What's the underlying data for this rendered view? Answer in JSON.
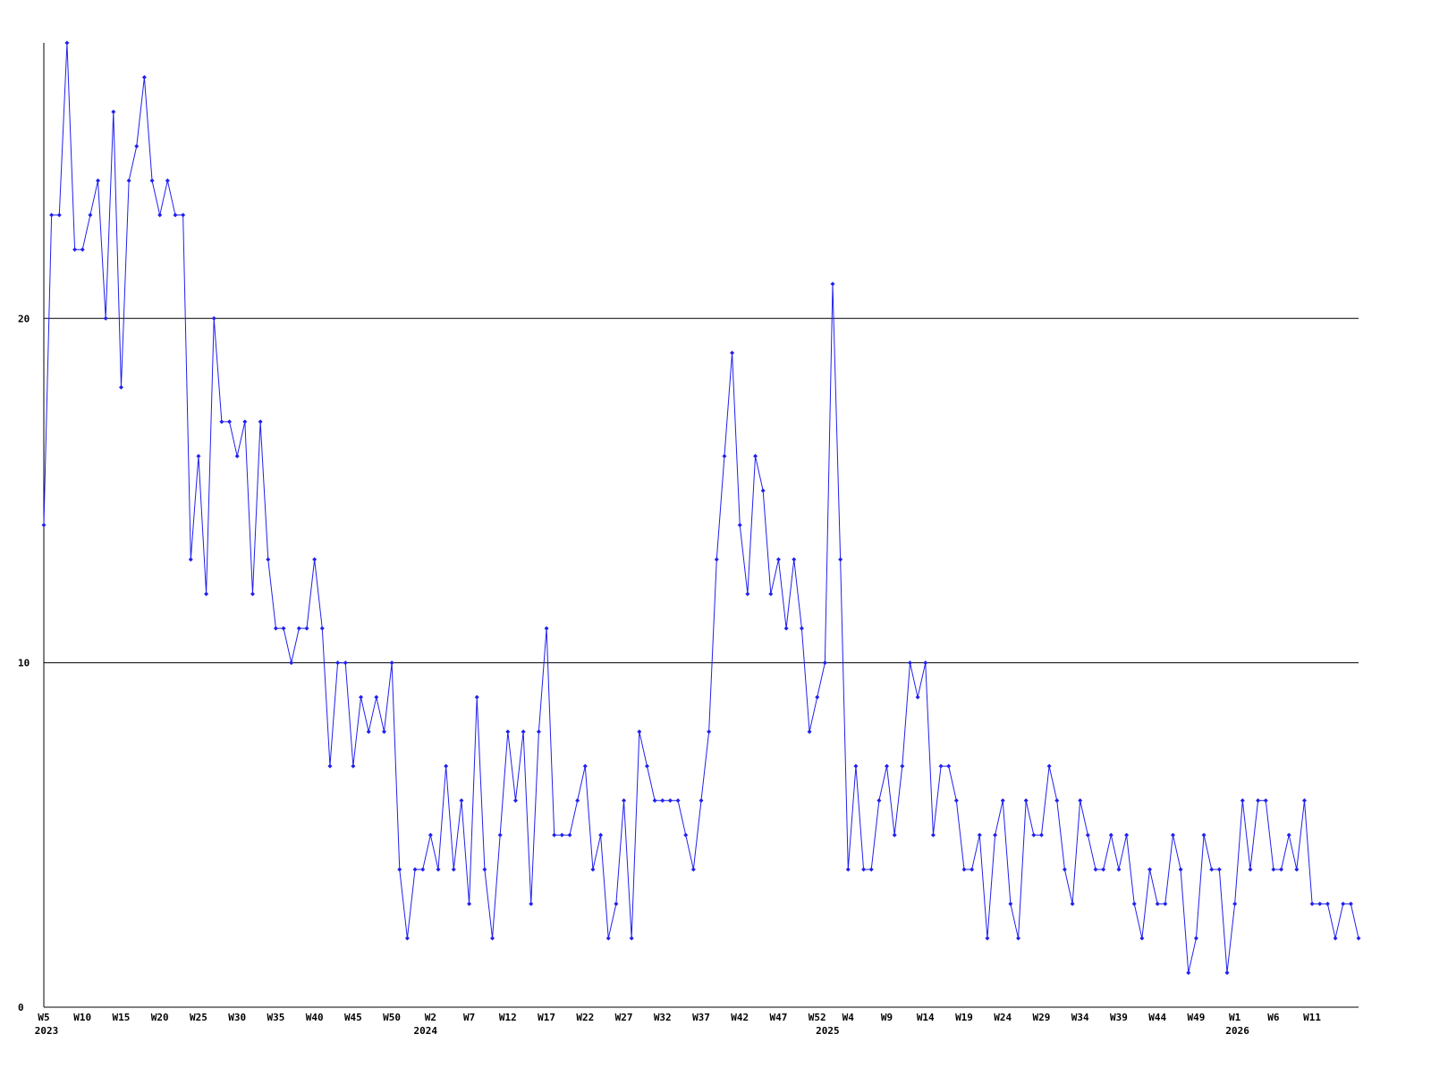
{
  "chart_data": {
    "type": "line",
    "categories": [
      "W5",
      null,
      null,
      null,
      null,
      "W10",
      null,
      null,
      null,
      null,
      "W15",
      null,
      null,
      null,
      null,
      "W20",
      null,
      null,
      null,
      null,
      "W25",
      null,
      null,
      null,
      null,
      "W30",
      null,
      null,
      null,
      null,
      "W35",
      null,
      null,
      null,
      null,
      "W40",
      null,
      null,
      null,
      null,
      "W45",
      null,
      null,
      null,
      null,
      "W50",
      null,
      null,
      null,
      null,
      "W2",
      null,
      null,
      null,
      null,
      "W7",
      null,
      null,
      null,
      null,
      "W12",
      null,
      null,
      null,
      null,
      "W17",
      null,
      null,
      null,
      null,
      "W22",
      null,
      null,
      null,
      null,
      "W27",
      null,
      null,
      null,
      null,
      "W32",
      null,
      null,
      null,
      null,
      "W37",
      null,
      null,
      null,
      null,
      "W42",
      null,
      null,
      null,
      null,
      "W47",
      null,
      null,
      null,
      null,
      "W52",
      null,
      null,
      null,
      "W4",
      null,
      null,
      null,
      null,
      "W9",
      null,
      null,
      null,
      null,
      "W14",
      null,
      null,
      null,
      null,
      "W19",
      null,
      null,
      null,
      null,
      "W24",
      null,
      null,
      null,
      null,
      "W29",
      null,
      null,
      null,
      null,
      "W34",
      null,
      null,
      null,
      null,
      "W39",
      null,
      null,
      null,
      null,
      "W44",
      null,
      null,
      null,
      null,
      "W49",
      null,
      null,
      null,
      null,
      "W1",
      null,
      null,
      null,
      null,
      "W6",
      null,
      null,
      null,
      null,
      "W11",
      null,
      null,
      null,
      null,
      null,
      null
    ],
    "year_labels": [
      "2023",
      null,
      null,
      null,
      null,
      null,
      null,
      null,
      null,
      null,
      null,
      null,
      null,
      null,
      null,
      null,
      null,
      null,
      null,
      null,
      null,
      null,
      null,
      null,
      null,
      null,
      null,
      null,
      null,
      null,
      null,
      null,
      null,
      null,
      null,
      null,
      null,
      null,
      null,
      null,
      null,
      null,
      null,
      null,
      null,
      null,
      null,
      null,
      null,
      "2024",
      null,
      null,
      null,
      null,
      null,
      null,
      null,
      null,
      null,
      null,
      null,
      null,
      null,
      null,
      null,
      null,
      null,
      null,
      null,
      null,
      null,
      null,
      null,
      null,
      null,
      null,
      null,
      null,
      null,
      null,
      null,
      null,
      null,
      null,
      null,
      null,
      null,
      null,
      null,
      null,
      null,
      null,
      null,
      null,
      null,
      null,
      null,
      null,
      null,
      null,
      null,
      "2025",
      null,
      null,
      null,
      null,
      null,
      null,
      null,
      null,
      null,
      null,
      null,
      null,
      null,
      null,
      null,
      null,
      null,
      null,
      null,
      null,
      null,
      null,
      null,
      null,
      null,
      null,
      null,
      null,
      null,
      null,
      null,
      null,
      null,
      null,
      null,
      null,
      null,
      null,
      null,
      null,
      null,
      null,
      null,
      null,
      null,
      null,
      null,
      null,
      null,
      null,
      null,
      null,
      "2026",
      null,
      null,
      null,
      null,
      null,
      null,
      null,
      null,
      null,
      null,
      null,
      null,
      null,
      null,
      null
    ],
    "series": [
      {
        "color": "#2020ee",
        "values": [
          14,
          23,
          23,
          28,
          22,
          22,
          23,
          24,
          20,
          26,
          18,
          24,
          25,
          27,
          24,
          23,
          24,
          23,
          23,
          13,
          16,
          12,
          20,
          17,
          17,
          16,
          17,
          12,
          17,
          13,
          11,
          11,
          10,
          11,
          11,
          13,
          11,
          7,
          10,
          10,
          7,
          9,
          8,
          9,
          8,
          10,
          4,
          2,
          4,
          4,
          5,
          4,
          7,
          4,
          6,
          3,
          9,
          4,
          2,
          5,
          8,
          6,
          8,
          3,
          8,
          11,
          5,
          5,
          5,
          6,
          7,
          4,
          5,
          2,
          3,
          6,
          2,
          8,
          7,
          6,
          6,
          6,
          6,
          5,
          4,
          6,
          8,
          13,
          16,
          19,
          14,
          12,
          16,
          15,
          12,
          13,
          11,
          13,
          11,
          8,
          9,
          10,
          21,
          13,
          4,
          7,
          4,
          4,
          6,
          7,
          5,
          7,
          10,
          9,
          10,
          5,
          7,
          7,
          6,
          4,
          4,
          5,
          2,
          5,
          6,
          3,
          2,
          6,
          5,
          5,
          7,
          6,
          4,
          3,
          6,
          5,
          4,
          4,
          5,
          4,
          5,
          3,
          2,
          4,
          3,
          3,
          5,
          4,
          1,
          2,
          5,
          4,
          4,
          1,
          3,
          6,
          4,
          6,
          6,
          4,
          4,
          5,
          4,
          6,
          3,
          3,
          3,
          2,
          3,
          3,
          2
        ]
      }
    ],
    "ylim": [
      0,
      28
    ],
    "yticks": [
      0,
      10,
      20
    ],
    "grid": true
  }
}
